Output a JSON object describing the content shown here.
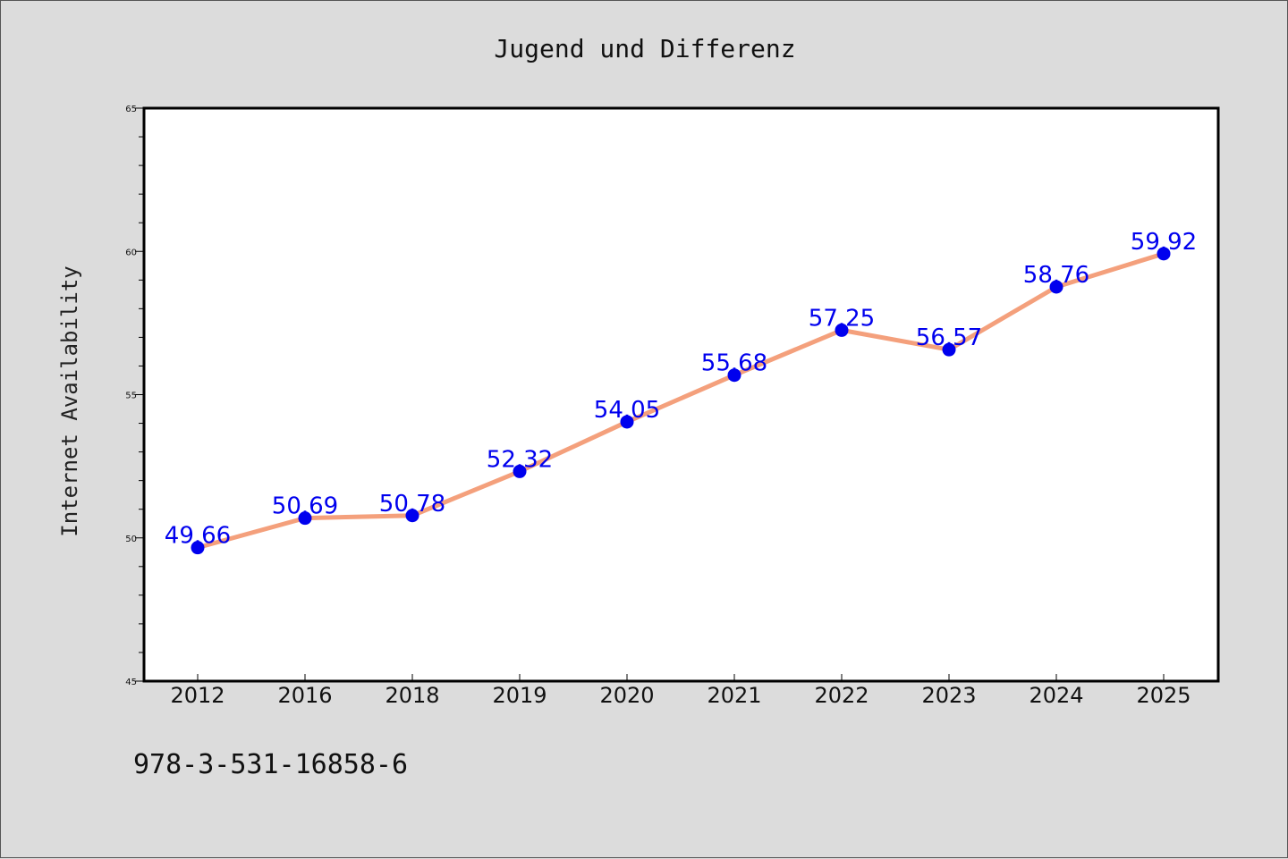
{
  "chart_data": {
    "type": "line",
    "title": "Jugend und Differenz",
    "xlabel": "",
    "ylabel": "Internet Availability",
    "categories": [
      "2012",
      "2016",
      "2018",
      "2019",
      "2020",
      "2021",
      "2022",
      "2023",
      "2024",
      "2025"
    ],
    "series": [
      {
        "values": [
          49.66,
          50.69,
          50.78,
          52.32,
          54.05,
          55.68,
          57.25,
          56.57,
          58.76,
          59.92
        ],
        "data_labels": [
          "49.66",
          "50.69",
          "50.78",
          "52.32",
          "54.05",
          "55.68",
          "57.25",
          "56.57",
          "58.76",
          "59.92"
        ],
        "line_color": "#f4a07c",
        "marker_color": "#0000ee"
      }
    ],
    "ylim": [
      45,
      65
    ],
    "yticks": [
      "45",
      "50",
      "55",
      "60",
      "65"
    ],
    "grid": false,
    "legend": "none"
  },
  "footnote": "978-3-531-16858-6"
}
